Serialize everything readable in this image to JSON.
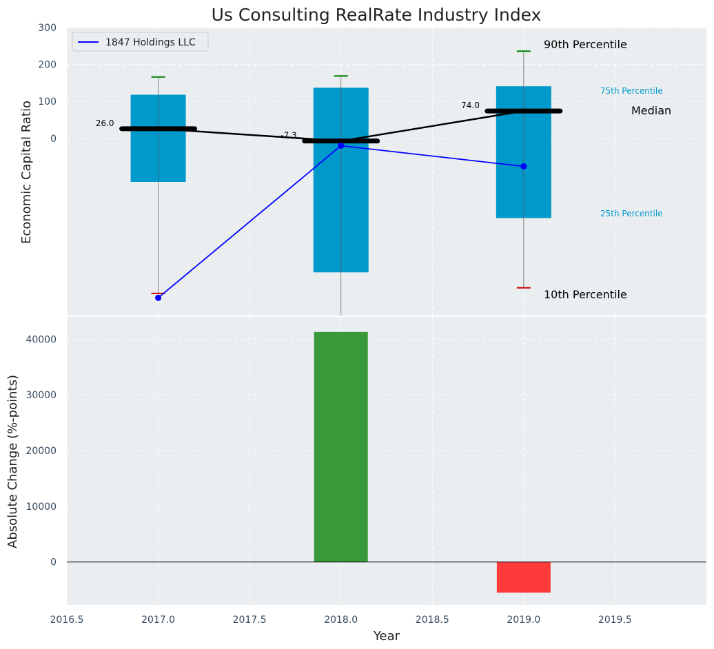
{
  "chart_data": [
    {
      "type": "box",
      "title": "Us Consulting RealRate Industry Index",
      "ylabel": "Economic Capital Ratio",
      "xlim": [
        2016.5,
        2020.0
      ],
      "ylim": [
        -480,
        300
      ],
      "yticks": [
        0,
        100,
        200,
        300
      ],
      "x": [
        2017,
        2018,
        2019
      ],
      "p10": [
        -420,
        -490,
        -405
      ],
      "p25": [
        -118,
        -363,
        -216
      ],
      "median": [
        26.0,
        -7.3,
        74.0
      ],
      "median_labels": [
        "26.0",
        "-7.3",
        "74.0"
      ],
      "p75": [
        118,
        137,
        141
      ],
      "p90": [
        166,
        169,
        236
      ],
      "series": [
        {
          "name": "1847 Holdings LLC",
          "values": [
            -432,
            -20,
            -76
          ]
        }
      ],
      "annotations": {
        "p90": "90th Percentile",
        "p75": "75th Percentile",
        "median": "Median",
        "p25": "25th Percentile",
        "p10": "10th Percentile"
      },
      "colors": {
        "box": "#0099cc",
        "company": "#0000ff",
        "median": "#000000",
        "p90_cap": "#008000",
        "p10_cap": "#cc0000"
      },
      "legend": "top-left",
      "grid": true
    },
    {
      "type": "bar",
      "xlabel": "Year",
      "ylabel": "Absolute Change (%-points)",
      "x": [
        2018,
        2019
      ],
      "values": [
        41300,
        -5500
      ],
      "ylim": [
        -7700,
        44000
      ],
      "yticks": [
        0,
        10000,
        20000,
        30000,
        40000
      ],
      "xticks": [
        "2016.5",
        "2017.0",
        "2017.5",
        "2018.0",
        "2018.5",
        "2019.0",
        "2019.5"
      ],
      "colors": {
        "positive": "#3a9a3a",
        "negative": "#ff3a3a"
      },
      "grid": true
    }
  ]
}
